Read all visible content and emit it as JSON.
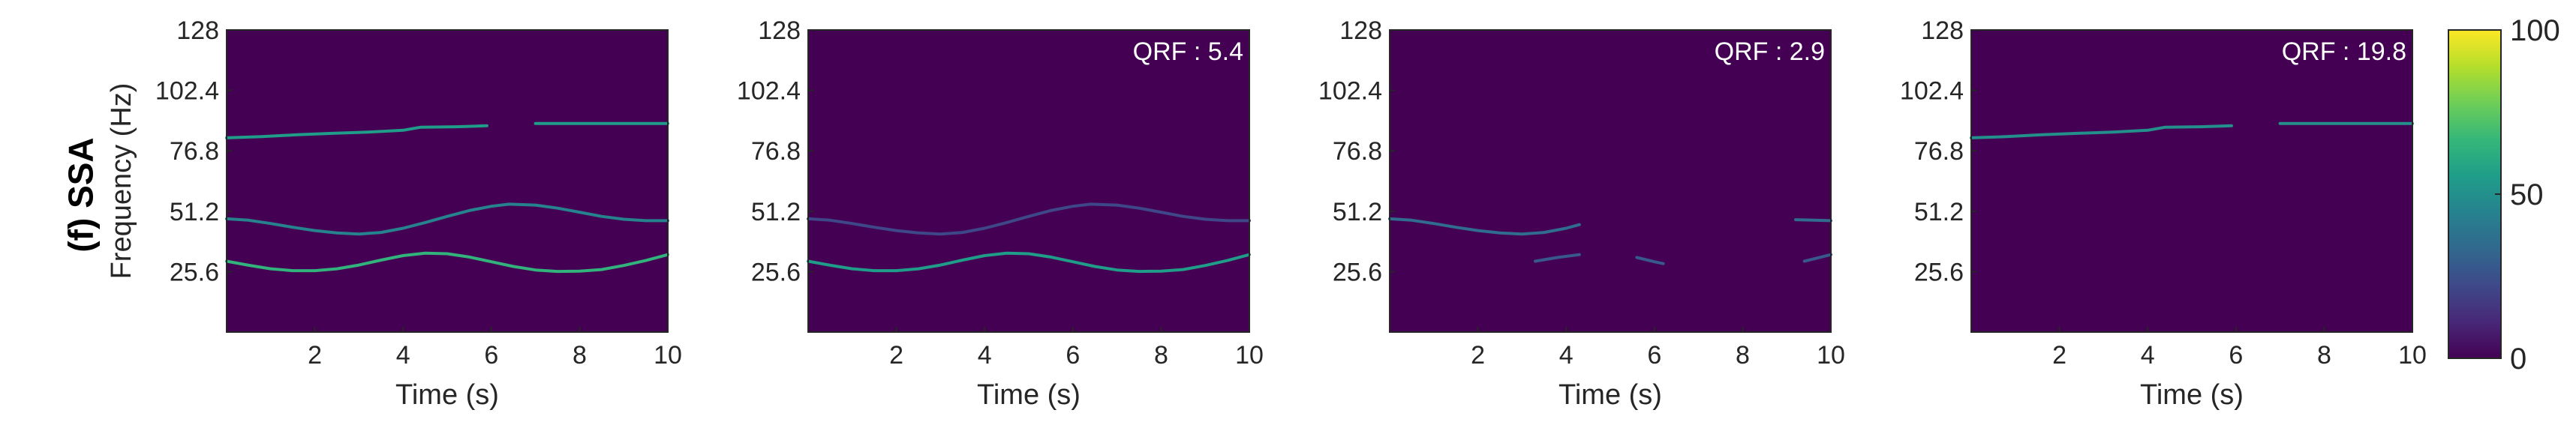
{
  "row_label": "(f) SSA",
  "chart_data": [
    {
      "type": "heatmap",
      "annotation": "",
      "ylabel": "Frequency (Hz)",
      "xlabel": "Time (s)",
      "xlim": [
        0,
        10
      ],
      "ylim": [
        0,
        128
      ],
      "xticks": [
        2,
        4,
        6,
        8,
        10
      ],
      "xtick_labels": [
        "2",
        "4",
        "6",
        "8",
        "10"
      ],
      "yticks": [
        25.6,
        51.2,
        76.8,
        102.4,
        128
      ],
      "ytick_labels": [
        "25.6",
        "51.2",
        "76.8",
        "102.4",
        "128"
      ],
      "ridges": [
        {
          "segments": [
            [
              [
                0.0,
                82.3
              ],
              [
                0.8,
                82.8
              ],
              [
                1.6,
                83.6
              ],
              [
                2.4,
                84.2
              ],
              [
                3.2,
                84.7
              ],
              [
                4.0,
                85.5
              ],
              [
                4.4,
                86.8
              ],
              [
                5.2,
                87.0
              ],
              [
                5.9,
                87.4
              ]
            ],
            [
              [
                7.0,
                88.4
              ],
              [
                7.5,
                88.4
              ],
              [
                8.5,
                88.4
              ],
              [
                9.5,
                88.4
              ],
              [
                10.0,
                88.4
              ]
            ]
          ],
          "intensity": 55
        },
        {
          "segments": [
            [
              [
                0.0,
                48.0
              ],
              [
                0.5,
                47.4
              ],
              [
                1.0,
                46.0
              ],
              [
                1.5,
                44.4
              ],
              [
                2.0,
                43.0
              ],
              [
                2.5,
                42.0
              ],
              [
                3.0,
                41.5
              ],
              [
                3.5,
                42.2
              ],
              [
                4.0,
                44.0
              ],
              [
                4.5,
                46.4
              ],
              [
                5.0,
                49.0
              ],
              [
                5.5,
                51.5
              ],
              [
                6.0,
                53.3
              ],
              [
                6.4,
                54.2
              ],
              [
                7.0,
                53.8
              ],
              [
                7.5,
                52.5
              ],
              [
                8.0,
                50.8
              ],
              [
                8.5,
                49.0
              ],
              [
                9.0,
                47.8
              ],
              [
                9.5,
                47.2
              ],
              [
                10.0,
                47.2
              ]
            ]
          ],
          "intensity": 45
        },
        {
          "segments": [
            [
              [
                0.0,
                30.0
              ],
              [
                0.5,
                28.3
              ],
              [
                1.0,
                26.8
              ],
              [
                1.5,
                26.0
              ],
              [
                2.0,
                26.0
              ],
              [
                2.5,
                26.8
              ],
              [
                3.0,
                28.4
              ],
              [
                3.5,
                30.5
              ],
              [
                4.0,
                32.4
              ],
              [
                4.5,
                33.4
              ],
              [
                5.0,
                33.2
              ],
              [
                5.5,
                31.8
              ],
              [
                6.0,
                29.8
              ],
              [
                6.5,
                27.8
              ],
              [
                7.0,
                26.3
              ],
              [
                7.5,
                25.7
              ],
              [
                8.0,
                25.8
              ],
              [
                8.5,
                26.5
              ],
              [
                9.0,
                28.2
              ],
              [
                9.5,
                30.3
              ],
              [
                10.0,
                32.8
              ]
            ]
          ],
          "intensity": 65
        }
      ]
    },
    {
      "type": "heatmap",
      "annotation": "QRF : 5.4",
      "ylabel": "",
      "xlabel": "Time (s)",
      "xlim": [
        0,
        10
      ],
      "ylim": [
        0,
        128
      ],
      "xticks": [
        2,
        4,
        6,
        8,
        10
      ],
      "xtick_labels": [
        "2",
        "4",
        "6",
        "8",
        "10"
      ],
      "yticks": [
        25.6,
        51.2,
        76.8,
        102.4,
        128
      ],
      "ytick_labels": [
        "25.6",
        "51.2",
        "76.8",
        "102.4",
        "128"
      ],
      "ridges": [
        {
          "segments": [
            [
              [
                0.0,
                48.0
              ],
              [
                0.5,
                47.4
              ],
              [
                1.0,
                46.0
              ],
              [
                1.5,
                44.4
              ],
              [
                2.0,
                43.0
              ],
              [
                2.5,
                42.0
              ],
              [
                3.0,
                41.5
              ],
              [
                3.5,
                42.2
              ],
              [
                4.0,
                44.0
              ],
              [
                4.5,
                46.4
              ],
              [
                5.0,
                49.0
              ],
              [
                5.5,
                51.5
              ],
              [
                6.0,
                53.3
              ],
              [
                6.4,
                54.2
              ],
              [
                7.0,
                53.8
              ],
              [
                7.5,
                52.5
              ],
              [
                8.0,
                50.8
              ],
              [
                8.5,
                49.0
              ],
              [
                9.0,
                47.8
              ],
              [
                9.5,
                47.2
              ],
              [
                10.0,
                47.2
              ]
            ]
          ],
          "intensity": 22
        },
        {
          "segments": [
            [
              [
                0.0,
                30.0
              ],
              [
                0.5,
                28.3
              ],
              [
                1.0,
                26.8
              ],
              [
                1.5,
                26.0
              ],
              [
                2.0,
                26.0
              ],
              [
                2.5,
                26.8
              ],
              [
                3.0,
                28.4
              ],
              [
                3.5,
                30.5
              ],
              [
                4.0,
                32.4
              ],
              [
                4.5,
                33.4
              ],
              [
                5.0,
                33.2
              ],
              [
                5.5,
                31.8
              ],
              [
                6.0,
                29.8
              ],
              [
                6.5,
                27.8
              ],
              [
                7.0,
                26.3
              ],
              [
                7.5,
                25.7
              ],
              [
                8.0,
                25.8
              ],
              [
                8.5,
                26.5
              ],
              [
                9.0,
                28.2
              ],
              [
                9.5,
                30.3
              ],
              [
                10.0,
                32.8
              ]
            ]
          ],
          "intensity": 55
        }
      ]
    },
    {
      "type": "heatmap",
      "annotation": "QRF : 2.9",
      "ylabel": "",
      "xlabel": "Time (s)",
      "xlim": [
        0,
        10
      ],
      "ylim": [
        0,
        128
      ],
      "xticks": [
        2,
        4,
        6,
        8,
        10
      ],
      "xtick_labels": [
        "2",
        "4",
        "6",
        "8",
        "10"
      ],
      "yticks": [
        25.6,
        51.2,
        76.8,
        102.4,
        128
      ],
      "ytick_labels": [
        "25.6",
        "51.2",
        "76.8",
        "102.4",
        "128"
      ],
      "ridges": [
        {
          "segments": [
            [
              [
                0.0,
                48.0
              ],
              [
                0.5,
                47.4
              ],
              [
                1.0,
                46.0
              ],
              [
                1.5,
                44.4
              ],
              [
                2.0,
                43.0
              ],
              [
                2.5,
                42.0
              ],
              [
                3.0,
                41.5
              ],
              [
                3.5,
                42.2
              ],
              [
                4.0,
                44.0
              ],
              [
                4.3,
                45.5
              ]
            ],
            [
              [
                9.2,
                47.6
              ],
              [
                10.0,
                47.2
              ]
            ]
          ],
          "intensity": 35
        },
        {
          "segments": [
            [
              [
                3.3,
                30.0
              ],
              [
                3.8,
                31.6
              ],
              [
                4.3,
                32.8
              ]
            ],
            [
              [
                5.6,
                31.6
              ],
              [
                6.0,
                29.8
              ],
              [
                6.2,
                29.0
              ]
            ],
            [
              [
                9.4,
                30.0
              ],
              [
                10.0,
                32.8
              ]
            ]
          ],
          "intensity": 28
        }
      ]
    },
    {
      "type": "heatmap",
      "annotation": "QRF : 19.8",
      "ylabel": "",
      "xlabel": "Time (s)",
      "xlim": [
        0,
        10
      ],
      "ylim": [
        0,
        128
      ],
      "xticks": [
        2,
        4,
        6,
        8,
        10
      ],
      "xtick_labels": [
        "2",
        "4",
        "6",
        "8",
        "10"
      ],
      "yticks": [
        25.6,
        51.2,
        76.8,
        102.4,
        128
      ],
      "ytick_labels": [
        "25.6",
        "51.2",
        "76.8",
        "102.4",
        "128"
      ],
      "ridges": [
        {
          "segments": [
            [
              [
                0.0,
                82.3
              ],
              [
                0.8,
                82.8
              ],
              [
                1.6,
                83.6
              ],
              [
                2.4,
                84.2
              ],
              [
                3.2,
                84.7
              ],
              [
                4.0,
                85.5
              ],
              [
                4.4,
                86.8
              ],
              [
                5.2,
                87.0
              ],
              [
                5.9,
                87.4
              ]
            ],
            [
              [
                7.0,
                88.4
              ],
              [
                7.5,
                88.4
              ],
              [
                8.5,
                88.4
              ],
              [
                9.5,
                88.4
              ],
              [
                10.0,
                88.4
              ]
            ]
          ],
          "intensity": 50
        }
      ]
    }
  ],
  "colorbar": {
    "min": 0,
    "max": 100,
    "ticks": [
      0,
      50,
      100
    ],
    "tick_labels": [
      "0",
      "50",
      "100"
    ],
    "colormap": "viridis",
    "stops": [
      "#440154",
      "#482878",
      "#3e4989",
      "#31688e",
      "#26828e",
      "#1f9e89",
      "#35b779",
      "#6ece58",
      "#b5de2b",
      "#fde725"
    ]
  }
}
